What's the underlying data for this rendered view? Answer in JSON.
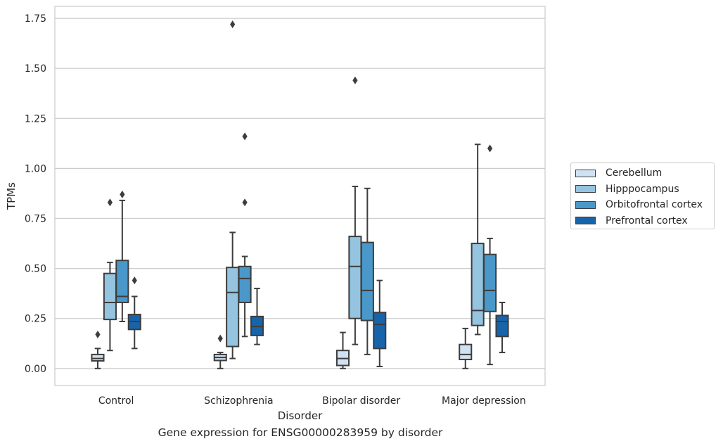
{
  "chart_data": {
    "type": "box",
    "title": "",
    "caption": "Gene expression for ENSG00000283959 by disorder",
    "xlabel": "Disorder",
    "ylabel": "TPMs",
    "ylim": [
      -0.085,
      1.81
    ],
    "yticks": [
      0.0,
      0.25,
      0.5,
      0.75,
      1.0,
      1.25,
      1.5,
      1.75
    ],
    "ytick_labels": [
      "0.00",
      "0.25",
      "0.50",
      "0.75",
      "1.00",
      "1.25",
      "1.50",
      "1.75"
    ],
    "grid": "horizontal",
    "legend_position": "right-outside",
    "categories": [
      "Control",
      "Schizophrenia",
      "Bipolar disorder",
      "Major depression"
    ],
    "series": [
      {
        "name": "Cerebellum",
        "color": "#d0e1f2",
        "boxes": [
          {
            "whislo": 0.0,
            "q1": 0.038,
            "med": 0.05,
            "q3": 0.07,
            "whishi": 0.1,
            "fliers": [
              0.17
            ]
          },
          {
            "whislo": 0.0,
            "q1": 0.04,
            "med": 0.055,
            "q3": 0.07,
            "whishi": 0.08,
            "fliers": [
              0.15
            ]
          },
          {
            "whislo": 0.0,
            "q1": 0.015,
            "med": 0.05,
            "q3": 0.09,
            "whishi": 0.18,
            "fliers": []
          },
          {
            "whislo": 0.0,
            "q1": 0.045,
            "med": 0.07,
            "q3": 0.12,
            "whishi": 0.2,
            "fliers": []
          }
        ]
      },
      {
        "name": "Hipppocampus",
        "color": "#94c4df",
        "boxes": [
          {
            "whislo": 0.09,
            "q1": 0.245,
            "med": 0.33,
            "q3": 0.475,
            "whishi": 0.53,
            "fliers": [
              0.83
            ]
          },
          {
            "whislo": 0.05,
            "q1": 0.11,
            "med": 0.38,
            "q3": 0.505,
            "whishi": 0.68,
            "fliers": [
              1.72
            ]
          },
          {
            "whislo": 0.12,
            "q1": 0.25,
            "med": 0.51,
            "q3": 0.66,
            "whishi": 0.91,
            "fliers": [
              1.44
            ]
          },
          {
            "whislo": 0.17,
            "q1": 0.215,
            "med": 0.29,
            "q3": 0.625,
            "whishi": 1.12,
            "fliers": []
          }
        ]
      },
      {
        "name": "Orbitofrontal cortex",
        "color": "#4a98c9",
        "boxes": [
          {
            "whislo": 0.235,
            "q1": 0.33,
            "med": 0.36,
            "q3": 0.54,
            "whishi": 0.84,
            "fliers": [
              0.87
            ]
          },
          {
            "whislo": 0.16,
            "q1": 0.33,
            "med": 0.45,
            "q3": 0.51,
            "whishi": 0.56,
            "fliers": [
              1.16,
              0.83
            ]
          },
          {
            "whislo": 0.07,
            "q1": 0.24,
            "med": 0.39,
            "q3": 0.63,
            "whishi": 0.9,
            "fliers": []
          },
          {
            "whislo": 0.02,
            "q1": 0.285,
            "med": 0.39,
            "q3": 0.57,
            "whishi": 0.65,
            "fliers": [
              1.1
            ]
          }
        ]
      },
      {
        "name": "Prefrontal cortex",
        "color": "#1764ab",
        "boxes": [
          {
            "whislo": 0.1,
            "q1": 0.195,
            "med": 0.235,
            "q3": 0.27,
            "whishi": 0.36,
            "fliers": [
              0.44
            ]
          },
          {
            "whislo": 0.12,
            "q1": 0.165,
            "med": 0.21,
            "q3": 0.26,
            "whishi": 0.4,
            "fliers": []
          },
          {
            "whislo": 0.01,
            "q1": 0.1,
            "med": 0.22,
            "q3": 0.28,
            "whishi": 0.44,
            "fliers": []
          },
          {
            "whislo": 0.08,
            "q1": 0.16,
            "med": 0.235,
            "q3": 0.265,
            "whishi": 0.33,
            "fliers": []
          }
        ]
      }
    ]
  }
}
